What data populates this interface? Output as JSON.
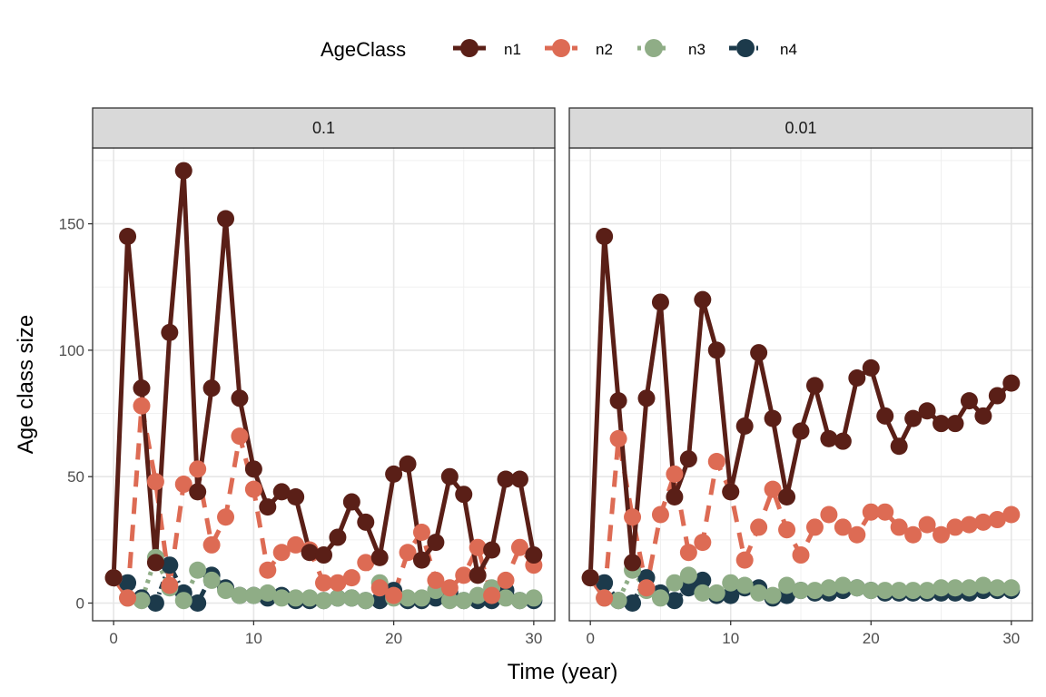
{
  "chart_data": {
    "type": "line",
    "xlabel": "Time (year)",
    "ylabel": "Age class size",
    "xlim": [
      -1.5,
      31.5
    ],
    "ylim": [
      -7,
      180
    ],
    "x_ticks": [
      0,
      10,
      20,
      30
    ],
    "y_ticks": [
      0,
      50,
      100,
      150
    ],
    "grid": true,
    "legend": {
      "title": "AgeClass",
      "position": "top",
      "entries": [
        "n1",
        "n2",
        "n3",
        "n4"
      ]
    },
    "colors": {
      "n1": "#5a1f17",
      "n2": "#dd6b54",
      "n3": "#8fad86",
      "n4": "#1c3a4b"
    },
    "x": [
      0,
      1,
      2,
      3,
      4,
      5,
      6,
      7,
      8,
      9,
      10,
      11,
      12,
      13,
      14,
      15,
      16,
      17,
      18,
      19,
      20,
      21,
      22,
      23,
      24,
      25,
      26,
      27,
      28,
      29,
      30
    ],
    "panels": [
      {
        "label": "0.1",
        "series": [
          {
            "name": "n1",
            "values": [
              10,
              145,
              85,
              16,
              107,
              171,
              44,
              85,
              152,
              81,
              53,
              38,
              44,
              42,
              20,
              19,
              26,
              40,
              32,
              18,
              51,
              55,
              17,
              24,
              50,
              43,
              11,
              21,
              49,
              49,
              19
            ]
          },
          {
            "name": "n2",
            "values": [
              10,
              2,
              78,
              48,
              7,
              47,
              53,
              23,
              34,
              66,
              45,
              13,
              20,
              23,
              21,
              8,
              8,
              10,
              16,
              6,
              3,
              20,
              28,
              9,
              6,
              11,
              22,
              3,
              9,
              22,
              15
            ]
          },
          {
            "name": "n3",
            "values": [
              10,
              2,
              1,
              18,
              6,
              1,
              13,
              9,
              5,
              3,
              3,
              4,
              2,
              2,
              2,
              1,
              2,
              2,
              1,
              8,
              2,
              2,
              2,
              5,
              1,
              1,
              3,
              6,
              2,
              1,
              2
            ]
          },
          {
            "name": "n4",
            "values": [
              10,
              8,
              2,
              0,
              15,
              4,
              0,
              11,
              6,
              3,
              3,
              2,
              3,
              1,
              1,
              1,
              2,
              2,
              1,
              1,
              5,
              1,
              1,
              2,
              4,
              1,
              1,
              1,
              5,
              1,
              1
            ]
          }
        ]
      },
      {
        "label": "0.01",
        "series": [
          {
            "name": "n1",
            "values": [
              10,
              145,
              80,
              16,
              81,
              119,
              42,
              57,
              120,
              100,
              44,
              70,
              99,
              73,
              42,
              68,
              86,
              65,
              64,
              89,
              93,
              74,
              62,
              73,
              76,
              71,
              71,
              80,
              74,
              82,
              87
            ]
          },
          {
            "name": "n2",
            "values": [
              10,
              2,
              65,
              34,
              6,
              35,
              51,
              20,
              24,
              56,
              44,
              17,
              30,
              45,
              29,
              19,
              30,
              35,
              30,
              27,
              36,
              36,
              30,
              27,
              31,
              27,
              30,
              31,
              32,
              33,
              35
            ]
          },
          {
            "name": "n3",
            "values": [
              10,
              2,
              1,
              13,
              5,
              2,
              8,
              11,
              4,
              4,
              8,
              7,
              4,
              3,
              7,
              5,
              5,
              6,
              7,
              6,
              5,
              5,
              5,
              5,
              5,
              6,
              6,
              6,
              7,
              6,
              6
            ]
          },
          {
            "name": "n4",
            "values": [
              10,
              8,
              1,
              0,
              10,
              4,
              1,
              6,
              9,
              3,
              3,
              6,
              6,
              2,
              3,
              5,
              4,
              4,
              5,
              6,
              5,
              4,
              4,
              4,
              4,
              4,
              4,
              4,
              5,
              5,
              5
            ]
          }
        ]
      }
    ]
  }
}
